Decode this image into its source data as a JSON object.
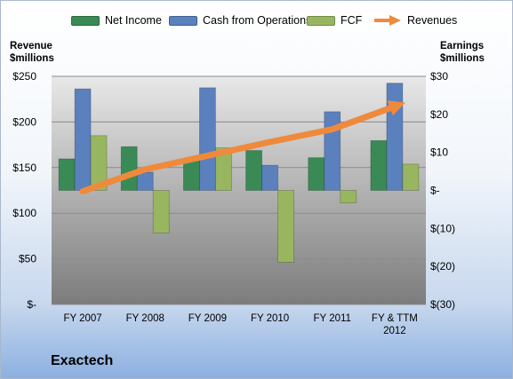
{
  "company": "Exactech",
  "colors": {
    "net_income": "#3a8a55",
    "cash_from_operations": "#5a80bd",
    "fcf": "#98b660",
    "revenues": "#ef8a3c"
  },
  "left_axis_title": [
    "Revenue",
    "$millions"
  ],
  "right_axis_title": [
    "Earnings",
    "$millions"
  ],
  "chart_data": {
    "type": "bar",
    "categories": [
      "FY 2007",
      "FY 2008",
      "FY 2009",
      "FY 2010",
      "FY 2011",
      "FY & TTM 2012"
    ],
    "category_lines": [
      [
        "FY 2007"
      ],
      [
        "FY 2008"
      ],
      [
        "FY 2009"
      ],
      [
        "FY 2010"
      ],
      [
        "FY 2011"
      ],
      [
        "FY & TTM",
        "2012"
      ]
    ],
    "left_axis": {
      "min": 0,
      "max": 250,
      "tick_values": [
        0,
        50,
        100,
        150,
        200,
        250
      ],
      "tick_labels": [
        "$-",
        "$50",
        "$100",
        "$150",
        "$200",
        "$250"
      ]
    },
    "right_axis": {
      "min": -30,
      "max": 30,
      "tick_values": [
        -30,
        -20,
        -10,
        0,
        10,
        20,
        30
      ],
      "tick_labels": [
        "$(30)",
        "$(20)",
        "$(10)",
        "$-",
        "$10",
        "$20",
        "$30"
      ]
    },
    "grid": true,
    "legend_position": "top",
    "series": [
      {
        "name": "Net Income",
        "type": "bar",
        "axis": "right",
        "values": [
          8.3,
          11.5,
          8.3,
          10.5,
          8.6,
          13.1
        ]
      },
      {
        "name": "Cash from Operations",
        "type": "bar",
        "axis": "right",
        "values": [
          26.7,
          4.8,
          27.0,
          6.6,
          20.7,
          28.2
        ]
      },
      {
        "name": "FCF",
        "type": "bar",
        "axis": "right",
        "values": [
          14.4,
          -11.2,
          11.2,
          -18.9,
          -3.3,
          6.9
        ]
      },
      {
        "name": "Revenues",
        "type": "line",
        "axis": "left",
        "values": [
          124,
          148,
          163,
          178,
          192,
          217
        ]
      }
    ]
  }
}
